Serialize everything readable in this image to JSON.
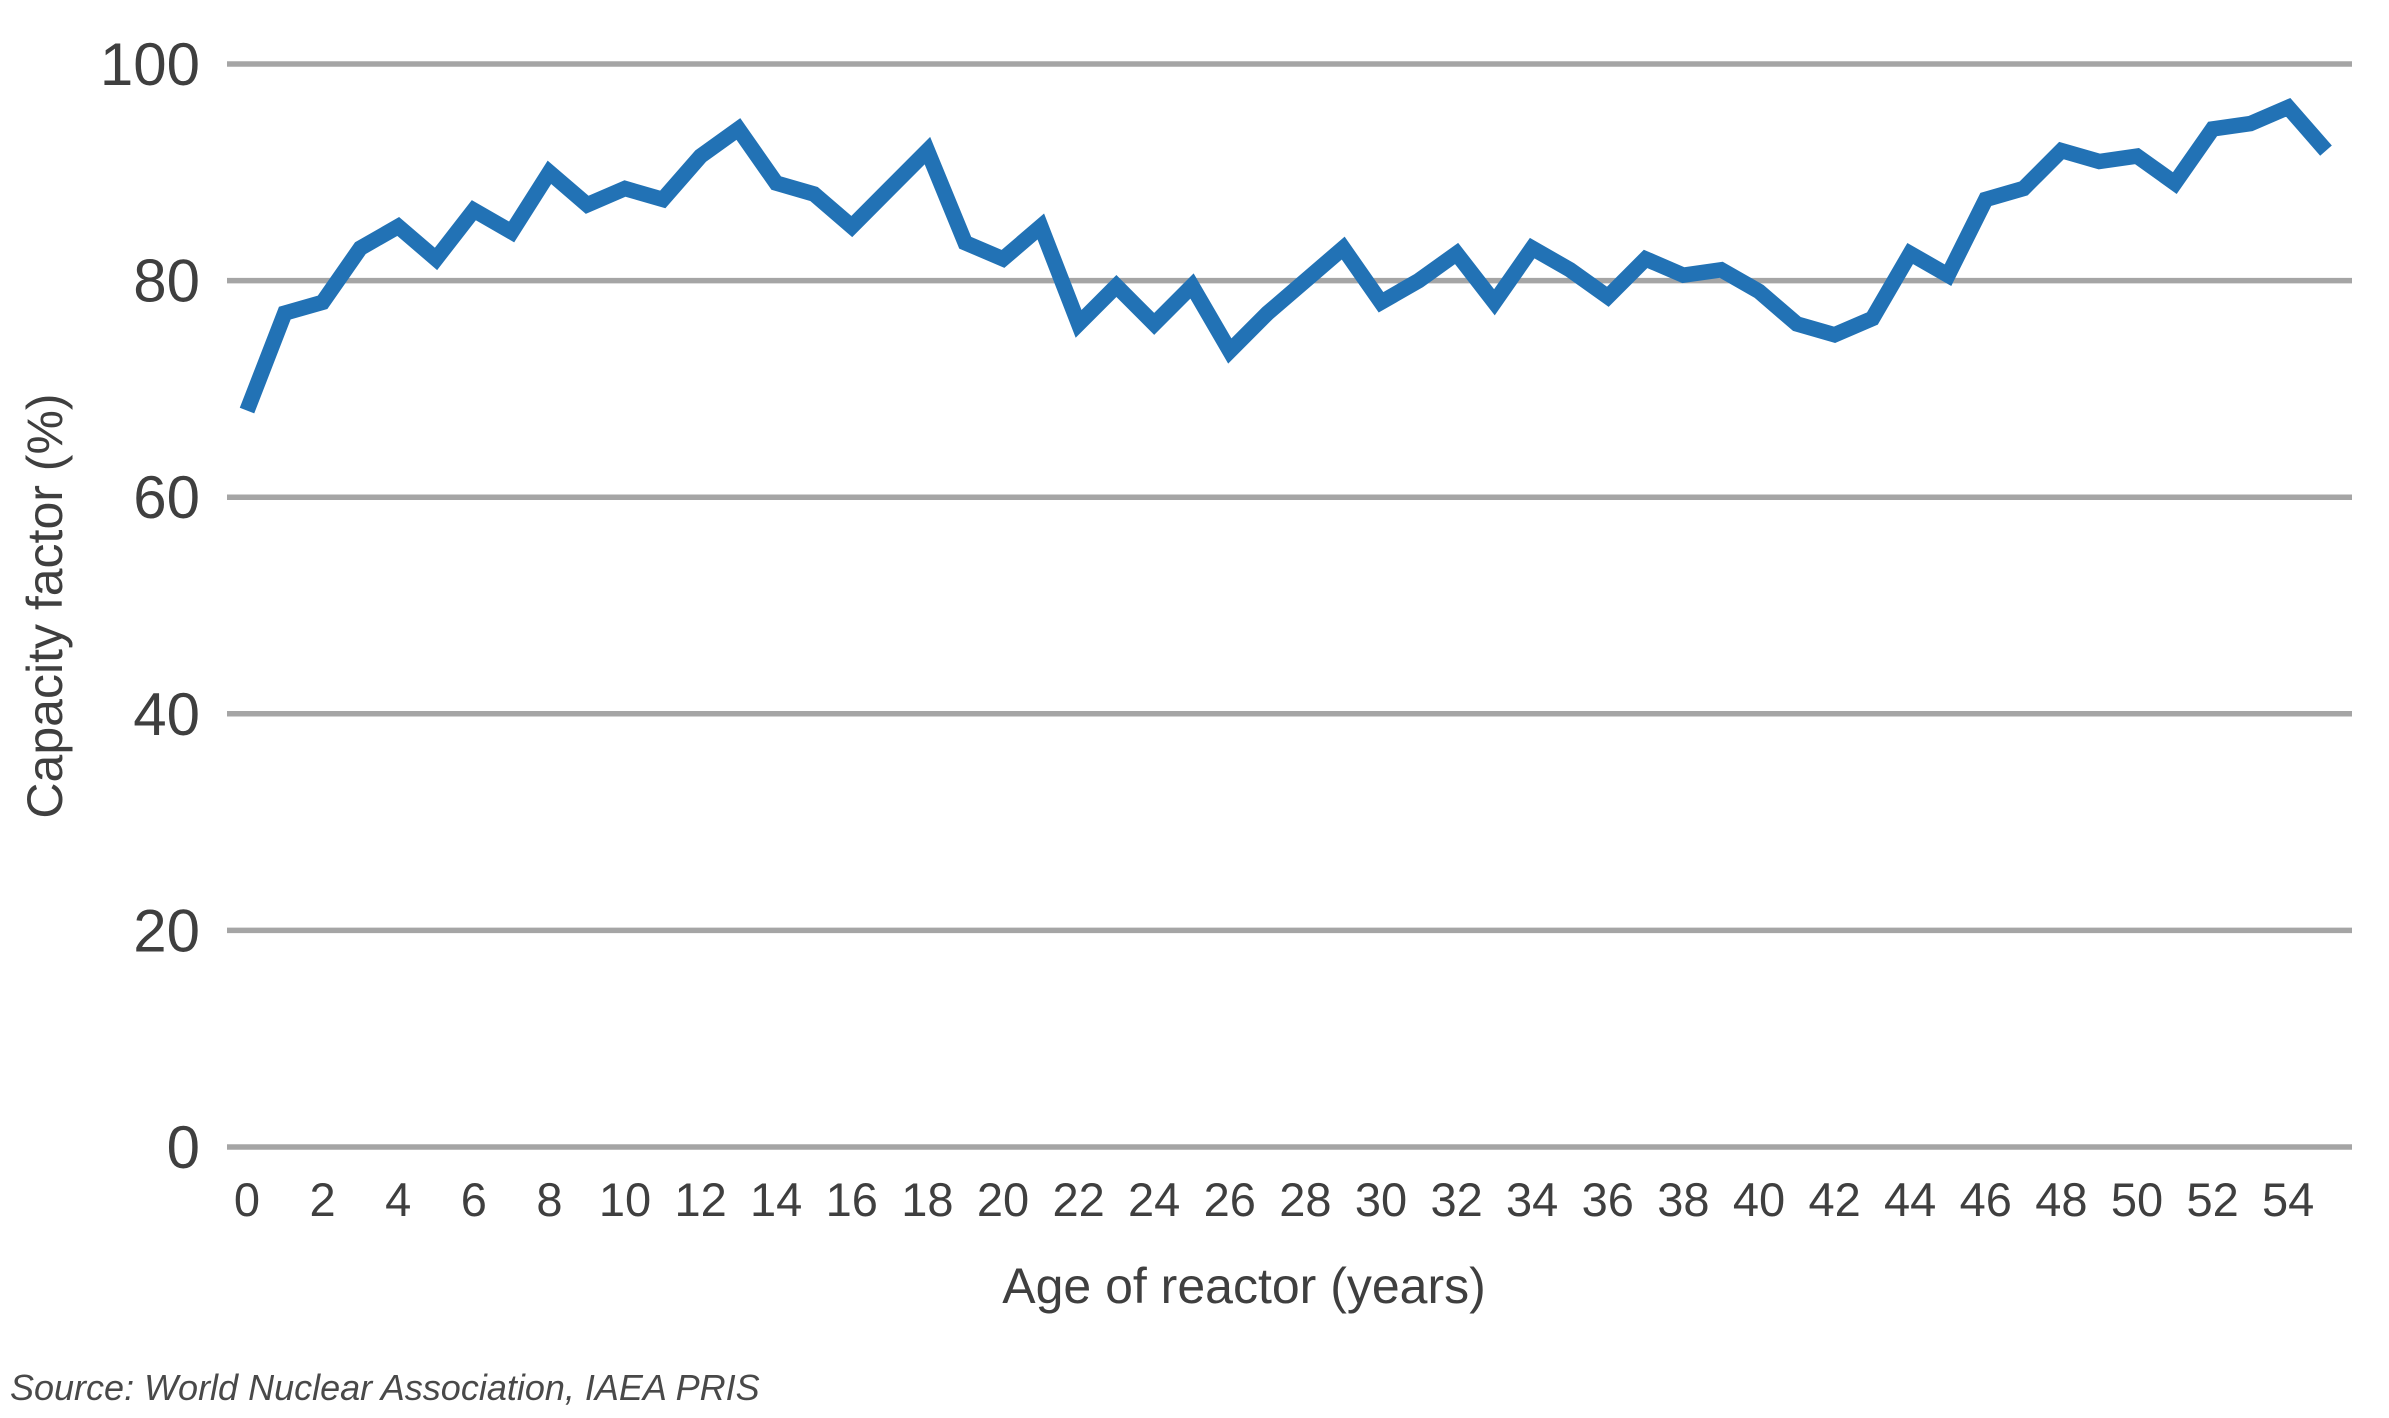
{
  "chart_data": {
    "type": "line",
    "title": "",
    "xlabel": "Age of reactor (years)",
    "ylabel": "Capacity factor (%)",
    "x": [
      0,
      1,
      2,
      3,
      4,
      5,
      6,
      7,
      8,
      9,
      10,
      11,
      12,
      13,
      14,
      15,
      16,
      17,
      18,
      19,
      20,
      21,
      22,
      23,
      24,
      25,
      26,
      27,
      28,
      29,
      30,
      31,
      32,
      33,
      34,
      35,
      36,
      37,
      38,
      39,
      40,
      41,
      42,
      43,
      44,
      45,
      46,
      47,
      48,
      49,
      50,
      51,
      52,
      53,
      54,
      55
    ],
    "series": [
      {
        "name": "Capacity factor",
        "values": [
          68,
          77,
          78,
          83,
          85,
          82,
          86.5,
          84.5,
          90,
          87,
          88.5,
          87.5,
          91.5,
          94,
          89,
          88,
          85,
          88.5,
          92,
          83.5,
          82,
          85,
          76,
          79.5,
          76,
          79.5,
          73.5,
          77,
          80,
          83,
          78,
          80,
          82.5,
          78,
          83,
          81,
          78.5,
          82,
          80.5,
          81,
          79,
          76,
          75,
          76.5,
          82.5,
          80.5,
          87.5,
          88.5,
          92,
          91,
          91.5,
          89,
          94,
          94.5,
          96,
          92
        ]
      }
    ],
    "x_ticks": [
      0,
      2,
      4,
      6,
      8,
      10,
      12,
      14,
      16,
      18,
      20,
      22,
      24,
      26,
      28,
      30,
      32,
      34,
      36,
      38,
      40,
      42,
      44,
      46,
      48,
      50,
      52,
      54
    ],
    "y_ticks": [
      0,
      20,
      40,
      60,
      80,
      100
    ],
    "xlim": [
      0,
      55
    ],
    "ylim": [
      0,
      100
    ],
    "grid": "horizontal-only",
    "legend": "none",
    "line_color": "#2272b5",
    "grid_color": "#a5a5a5",
    "text_color": "#3f3f3f"
  },
  "source": "Source: World Nuclear Association, IAEA PRIS"
}
